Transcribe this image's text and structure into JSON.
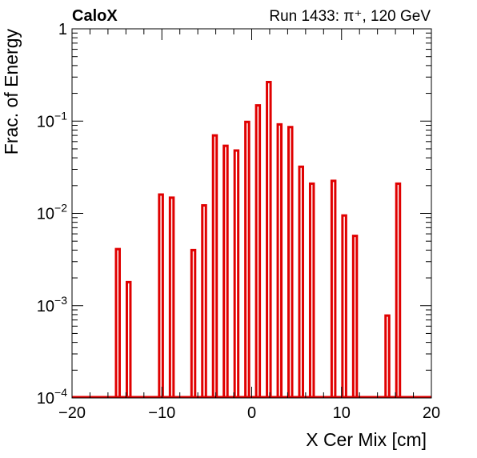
{
  "chart_data": {
    "type": "bar",
    "title_left": "CaloX",
    "title_right": "Run 1433: π⁺, 120 GeV",
    "xlabel": "X Cer Mix [cm]",
    "ylabel": "Frac. of Energy",
    "xlim": [
      -20,
      20
    ],
    "ylim": [
      0.0001,
      1
    ],
    "yscale": "log",
    "grid": false,
    "xticks": [
      {
        "value": -20,
        "label": "−20"
      },
      {
        "value": -10,
        "label": "−10"
      },
      {
        "value": 0,
        "label": "0"
      },
      {
        "value": 10,
        "label": "10"
      },
      {
        "value": 20,
        "label": "20"
      }
    ],
    "yticks": [
      {
        "value": 1,
        "base": "1",
        "exp": ""
      },
      {
        "value": 0.1,
        "base": "10",
        "exp": "−1"
      },
      {
        "value": 0.01,
        "base": "10",
        "exp": "−2"
      },
      {
        "value": 0.001,
        "base": "10",
        "exp": "−3"
      },
      {
        "value": 0.0001,
        "base": "10",
        "exp": "−4"
      }
    ],
    "bar_color": "#e00000",
    "bar_width": 0.4,
    "bars": [
      {
        "x": -14.9,
        "y": 0.0041
      },
      {
        "x": -13.7,
        "y": 0.0018
      },
      {
        "x": -10.1,
        "y": 0.016
      },
      {
        "x": -8.9,
        "y": 0.0148
      },
      {
        "x": -6.5,
        "y": 0.004
      },
      {
        "x": -5.3,
        "y": 0.0122
      },
      {
        "x": -4.1,
        "y": 0.07
      },
      {
        "x": -2.9,
        "y": 0.054
      },
      {
        "x": -1.7,
        "y": 0.048
      },
      {
        "x": -0.5,
        "y": 0.098
      },
      {
        "x": 0.7,
        "y": 0.148
      },
      {
        "x": 1.9,
        "y": 0.265
      },
      {
        "x": 3.1,
        "y": 0.092
      },
      {
        "x": 4.3,
        "y": 0.086
      },
      {
        "x": 5.5,
        "y": 0.032
      },
      {
        "x": 6.7,
        "y": 0.021
      },
      {
        "x": 9.1,
        "y": 0.0225
      },
      {
        "x": 10.3,
        "y": 0.0095
      },
      {
        "x": 11.5,
        "y": 0.0057
      },
      {
        "x": 15.1,
        "y": 0.00078
      },
      {
        "x": 16.3,
        "y": 0.021
      }
    ]
  }
}
